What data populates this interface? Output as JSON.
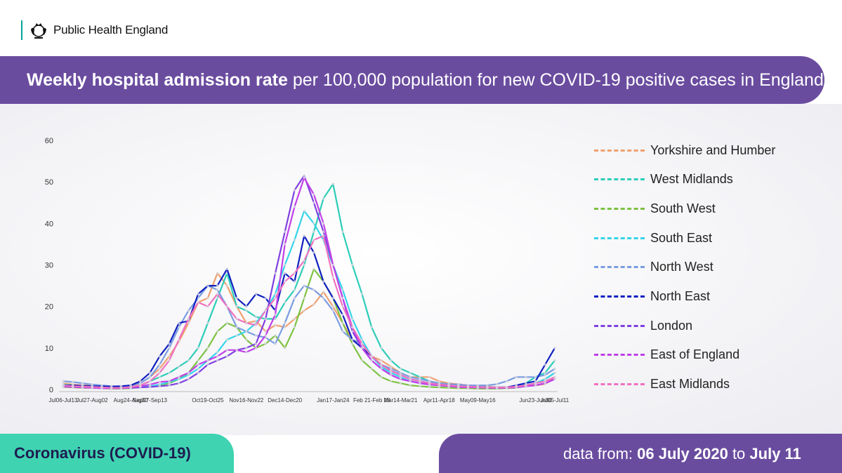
{
  "header": {
    "org_name": "Public Health England"
  },
  "banner": {
    "title_bold": "Weekly hospital admission rate",
    "title_rest": " per 100,000 population for new COVID-19 positive cases in England"
  },
  "footer": {
    "left_label": "Coronavirus (COVID-19)",
    "range_prefix": "data from: ",
    "range_start": "06 July 2020",
    "range_mid": " to ",
    "range_end": "July 11"
  },
  "chart_data": {
    "type": "line",
    "title": "Weekly hospital admission rate per 100,000 population for new COVID-19 positive cases in England",
    "xlabel": "",
    "ylabel": "",
    "ylim": [
      0,
      60
    ],
    "yticks": [
      0,
      10,
      20,
      30,
      40,
      50,
      60
    ],
    "grid": false,
    "legend_position": "right",
    "x": [
      "Jul06-Jul13",
      "Jul13-Jul20",
      "Jul20-Jul27",
      "Jul27-Aug02",
      "Aug03-Aug09",
      "Aug10-Aug16",
      "Aug17-Aug23",
      "Aug24-Aug30",
      "Aug31-Sep06",
      "Sep07-Sep13",
      "Sep14-Sep20",
      "Sep21-Sep27",
      "Sep28-Oct04",
      "Oct05-Oct11",
      "Oct12-Oct18",
      "Oct19-Oct25",
      "Oct26-Nov01",
      "Nov02-Nov08",
      "Nov09-Nov15",
      "Nov16-Nov22",
      "Nov23-Nov29",
      "Nov30-Dec06",
      "Dec07-Dec13",
      "Dec14-Dec20",
      "Dec21-Dec27",
      "Dec28-Jan03",
      "Jan04-Jan10",
      "Jan11-Jan17",
      "Jan17-Jan24",
      "Jan25-Jan31",
      "Feb01-Feb07",
      "Feb08-Feb14",
      "Feb 21-Feb 28",
      "Mar01-Mar07",
      "Mar08-Mar14",
      "Mar14-Mar21",
      "Mar22-Mar28",
      "Mar29-Apr04",
      "Apr05-Apr11",
      "Apr11-Apr18",
      "Apr19-Apr25",
      "Apr26-May02",
      "May03-May09",
      "May09-May16",
      "May17-May23",
      "May24-May30",
      "May31-Jun06",
      "Jun07-Jun13",
      "Jun14-Jun20",
      "Jun23-Jun30",
      "Jun28-Jul04",
      "Jul05-Jul11"
    ],
    "x_tick_labels": [
      "Jul06-Jul13",
      "Jul27-Aug02",
      "Aug24-Aug30",
      "Sep07-Sep13",
      "Oct19-Oct25",
      "Nov16-Nov22",
      "Dec14-Dec20",
      "Jan17-Jan24",
      "Feb 21-Feb 28",
      "Mar14-Mar21",
      "Apr11-Apr18",
      "May09-May16",
      "Jun23-Jun30",
      "Jul05-Jul11"
    ],
    "series": [
      {
        "name": "Yorkshire and Humber",
        "color": "#f0a070",
        "values": [
          1.5,
          1.2,
          1.0,
          1.0,
          0.8,
          0.7,
          0.6,
          0.8,
          1.5,
          3.0,
          5.0,
          8.0,
          11.5,
          16.0,
          21.0,
          22.0,
          28.0,
          25.0,
          20.0,
          16.0,
          16.5,
          14.0,
          15.5,
          15.0,
          17.0,
          19.0,
          20.5,
          23.5,
          20.0,
          16.0,
          12.0,
          10.0,
          8.0,
          7.0,
          5.5,
          4.0,
          3.0,
          3.0,
          3.0,
          2.0,
          1.5,
          1.3,
          1.0,
          0.8,
          0.7,
          0.5,
          0.5,
          0.5,
          0.8,
          1.0,
          1.3,
          3.0
        ]
      },
      {
        "name": "West Midlands",
        "color": "#2ecdb8",
        "values": [
          1.2,
          1.0,
          0.8,
          0.8,
          0.6,
          0.5,
          0.5,
          0.6,
          1.0,
          2.0,
          3.0,
          4.0,
          5.5,
          7.0,
          10.0,
          16.0,
          22.0,
          28.0,
          20.0,
          19.0,
          17.5,
          17.0,
          17.0,
          21.0,
          24.0,
          30.0,
          38.0,
          46.0,
          49.5,
          38.0,
          30.0,
          23.0,
          15.0,
          10.0,
          7.0,
          5.0,
          4.0,
          3.0,
          2.0,
          1.5,
          1.3,
          1.0,
          0.8,
          0.7,
          0.5,
          0.5,
          0.5,
          0.8,
          1.5,
          3.0,
          4.0,
          7.0
        ]
      },
      {
        "name": "South West",
        "color": "#7dc242",
        "values": [
          0.6,
          0.5,
          0.4,
          0.4,
          0.3,
          0.2,
          0.2,
          0.3,
          0.5,
          0.8,
          1.0,
          1.5,
          2.5,
          4.0,
          7.0,
          10.0,
          14.0,
          16.0,
          15.0,
          12.0,
          10.0,
          11.0,
          13.0,
          10.0,
          15.0,
          22.0,
          29.0,
          26.0,
          22.0,
          16.0,
          11.0,
          7.0,
          5.0,
          3.0,
          2.0,
          1.5,
          1.0,
          0.8,
          0.6,
          0.5,
          0.4,
          0.3,
          0.3,
          0.2,
          0.2,
          0.2,
          0.3,
          0.4,
          0.8,
          1.5,
          2.5,
          4.0
        ]
      },
      {
        "name": "South East",
        "color": "#35d4e8",
        "values": [
          0.8,
          0.7,
          0.6,
          0.5,
          0.4,
          0.3,
          0.3,
          0.4,
          0.5,
          0.8,
          1.2,
          1.8,
          2.5,
          3.5,
          5.0,
          7.0,
          9.0,
          12.0,
          13.0,
          14.0,
          16.0,
          19.0,
          23.0,
          30.0,
          36.0,
          43.0,
          40.0,
          36.0,
          30.0,
          24.0,
          17.0,
          12.0,
          8.0,
          5.5,
          4.0,
          3.0,
          2.0,
          1.5,
          1.2,
          1.0,
          0.8,
          0.7,
          0.6,
          0.5,
          0.5,
          0.5,
          0.5,
          0.7,
          1.0,
          1.5,
          2.5,
          4.0
        ]
      },
      {
        "name": "North West",
        "color": "#7b9de0",
        "values": [
          2.0,
          1.8,
          1.5,
          1.2,
          1.0,
          0.8,
          0.8,
          1.0,
          1.5,
          3.0,
          6.0,
          10.0,
          15.0,
          19.0,
          22.0,
          25.0,
          24.0,
          20.0,
          15.0,
          14.0,
          13.0,
          12.5,
          11.0,
          16.0,
          22.0,
          25.0,
          24.0,
          22.0,
          19.0,
          14.0,
          12.0,
          11.0,
          8.0,
          6.0,
          5.0,
          4.0,
          3.0,
          2.5,
          2.0,
          1.5,
          1.3,
          1.2,
          1.0,
          1.0,
          1.0,
          1.3,
          2.0,
          3.0,
          3.0,
          3.0,
          3.5,
          5.0
        ]
      },
      {
        "name": "North East",
        "color": "#1020c0",
        "values": [
          1.0,
          1.0,
          0.9,
          0.8,
          0.8,
          0.7,
          0.8,
          1.0,
          2.0,
          4.0,
          8.0,
          11.0,
          16.0,
          16.5,
          23.0,
          25.0,
          25.0,
          29.0,
          22.0,
          20.0,
          23.0,
          22.0,
          19.0,
          28.0,
          26.0,
          37.0,
          33.0,
          26.0,
          22.0,
          18.0,
          12.0,
          10.0,
          8.0,
          6.0,
          4.5,
          3.5,
          2.5,
          2.0,
          1.5,
          1.2,
          1.0,
          0.8,
          0.7,
          0.6,
          0.5,
          0.5,
          0.5,
          1.0,
          1.5,
          2.0,
          6.0,
          10.0
        ]
      },
      {
        "name": "London",
        "color": "#8040e0",
        "values": [
          0.8,
          0.6,
          0.5,
          0.4,
          0.3,
          0.3,
          0.3,
          0.4,
          0.5,
          0.6,
          0.8,
          1.0,
          1.5,
          2.5,
          4.0,
          6.0,
          7.0,
          8.0,
          9.5,
          10.0,
          11.0,
          17.0,
          28.0,
          38.0,
          48.0,
          51.5,
          45.0,
          38.0,
          30.0,
          22.0,
          14.0,
          10.0,
          7.0,
          5.0,
          3.5,
          2.5,
          2.0,
          1.5,
          1.2,
          1.0,
          0.8,
          0.6,
          0.5,
          0.5,
          0.4,
          0.4,
          0.4,
          0.5,
          0.8,
          1.0,
          1.5,
          2.5
        ]
      },
      {
        "name": "East of England",
        "color": "#c040e8",
        "values": [
          0.7,
          0.6,
          0.5,
          0.4,
          0.3,
          0.3,
          0.3,
          0.5,
          0.8,
          1.2,
          1.8,
          2.0,
          3.0,
          4.0,
          6.0,
          7.0,
          8.0,
          9.5,
          9.5,
          9.0,
          10.0,
          13.0,
          18.0,
          35.0,
          44.0,
          51.0,
          47.0,
          40.0,
          30.0,
          22.0,
          15.0,
          10.0,
          7.0,
          5.0,
          3.5,
          2.5,
          2.0,
          1.5,
          1.2,
          1.0,
          0.8,
          0.6,
          0.5,
          0.5,
          0.4,
          0.4,
          0.4,
          0.5,
          0.8,
          1.0,
          1.5,
          2.5
        ]
      },
      {
        "name": "East Midlands",
        "color": "#f070c0",
        "values": [
          1.0,
          0.8,
          0.7,
          0.6,
          0.5,
          0.4,
          0.4,
          0.6,
          1.0,
          2.0,
          4.0,
          7.0,
          12.0,
          17.0,
          21.0,
          20.0,
          23.0,
          20.0,
          17.0,
          16.0,
          15.5,
          19.0,
          22.0,
          26.0,
          28.0,
          31.0,
          36.0,
          37.0,
          27.0,
          20.0,
          15.0,
          11.0,
          8.0,
          6.0,
          4.5,
          3.5,
          2.5,
          2.0,
          1.5,
          1.2,
          1.0,
          0.8,
          0.7,
          0.6,
          0.5,
          0.5,
          0.5,
          0.7,
          1.0,
          1.5,
          2.0,
          3.0
        ]
      }
    ]
  }
}
